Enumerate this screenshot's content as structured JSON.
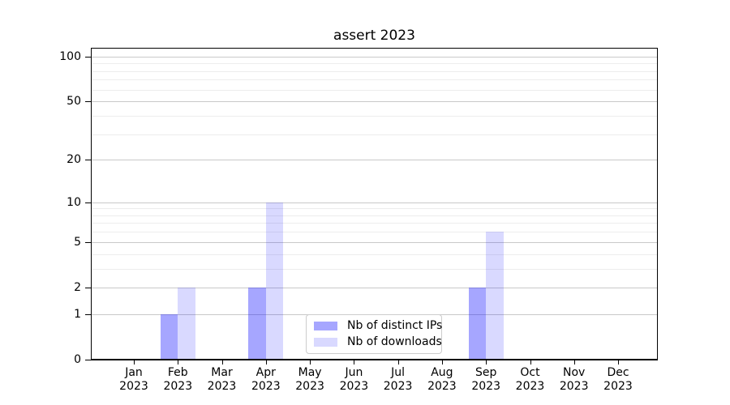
{
  "chart_data": {
    "type": "bar",
    "title": "assert 2023",
    "categories": [
      "Jan",
      "Feb",
      "Mar",
      "Apr",
      "May",
      "Jun",
      "Jul",
      "Aug",
      "Sep",
      "Oct",
      "Nov",
      "Dec"
    ],
    "year_label": "2023",
    "series": [
      {
        "name": "Nb of distinct IPs",
        "color": "#0000FF59",
        "values": [
          0,
          1,
          0,
          2,
          0,
          0,
          0,
          0,
          2,
          0,
          0,
          0
        ]
      },
      {
        "name": "Nb of downloads",
        "color": "#0000FF26",
        "values": [
          0,
          2,
          0,
          10,
          0,
          0,
          0,
          0,
          6,
          0,
          0,
          0
        ]
      }
    ],
    "xlabel": "",
    "ylabel": "",
    "yaxis": {
      "scale": "log1p",
      "ticks": [
        0,
        1,
        2,
        5,
        10,
        20,
        50,
        100
      ],
      "minor_gridlines": [
        3,
        4,
        6,
        7,
        8,
        9,
        30,
        40,
        60,
        70,
        80,
        90
      ],
      "max": 113
    },
    "grid": "on",
    "legend_position": "lower center inside axes"
  },
  "colors": {
    "bar_distinct_ips": "#0000FF59",
    "bar_downloads": "#0000FF26",
    "grid_major": "#c9c9c9",
    "grid_minor": "#ededed",
    "spine": "#000000",
    "text": "#000000",
    "legend_border": "#cccccc"
  }
}
